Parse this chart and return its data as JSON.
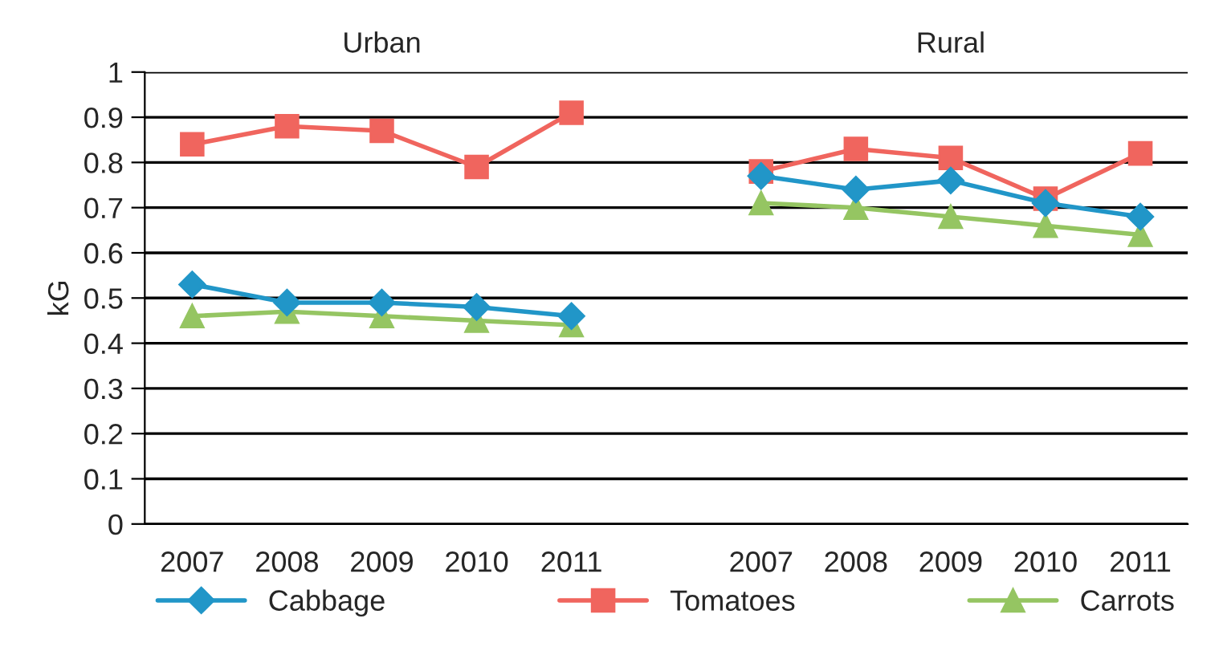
{
  "chart_data": {
    "type": "line",
    "ylabel": "kG",
    "annotations": [
      "Urban",
      "Rural"
    ],
    "categories": [
      "2007",
      "2008",
      "2009",
      "2010",
      "2011",
      null,
      "2007",
      "2008",
      "2009",
      "2010",
      "2011"
    ],
    "series": [
      {
        "name": "Cabbage",
        "color": "#2196c8",
        "marker": "diamond",
        "values": [
          0.53,
          0.49,
          0.49,
          0.48,
          0.46,
          null,
          0.77,
          0.74,
          0.76,
          0.71,
          0.68
        ]
      },
      {
        "name": "Tomatoes",
        "color": "#f0655e",
        "marker": "square",
        "values": [
          0.84,
          0.88,
          0.87,
          0.79,
          0.91,
          null,
          0.78,
          0.83,
          0.81,
          0.72,
          0.82
        ]
      },
      {
        "name": "Carrots",
        "color": "#95c562",
        "marker": "triangle",
        "values": [
          0.46,
          0.47,
          0.46,
          0.45,
          0.44,
          null,
          0.71,
          0.7,
          0.68,
          0.66,
          0.64
        ]
      }
    ],
    "ylim": [
      0,
      1
    ],
    "yticks": [
      0,
      0.1,
      0.2,
      0.3,
      0.4,
      0.5,
      0.6,
      0.7,
      0.8,
      0.9,
      1
    ],
    "grid": "y",
    "legend": "bottom",
    "line_style": "solid"
  }
}
